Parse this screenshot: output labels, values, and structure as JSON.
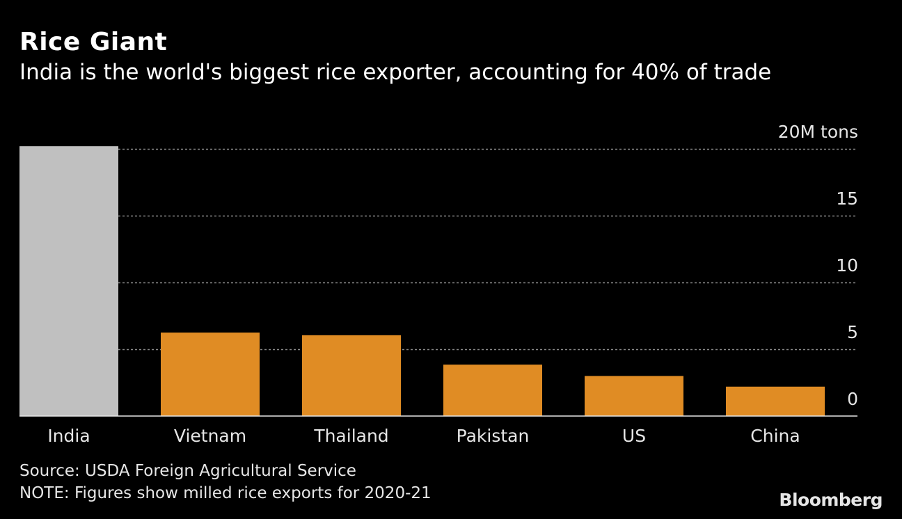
{
  "chart_data": {
    "type": "bar",
    "title": "Rice Giant",
    "subtitle": "India is the world's biggest rice exporter, accounting for 40% of trade",
    "categories": [
      "India",
      "Vietnam",
      "Thailand",
      "Pakistan",
      "US",
      "China"
    ],
    "values": [
      20.2,
      6.25,
      6.05,
      3.85,
      3.0,
      2.2
    ],
    "colors": [
      "#c0c0c0",
      "#e08c24",
      "#e08c24",
      "#e08c24",
      "#e08c24",
      "#e08c24"
    ],
    "ylim": [
      0,
      20
    ],
    "yticks": [
      0,
      5,
      10,
      15,
      20
    ],
    "ytick_labels": [
      "0",
      "5",
      "10",
      "15",
      "20M tons"
    ],
    "ylabel": "",
    "xlabel": "",
    "grid": true,
    "source": "Source: USDA Foreign Agricultural Service",
    "note": "NOTE: Figures show milled rice exports for 2020-21"
  },
  "branding": {
    "logo": "Bloomberg"
  }
}
